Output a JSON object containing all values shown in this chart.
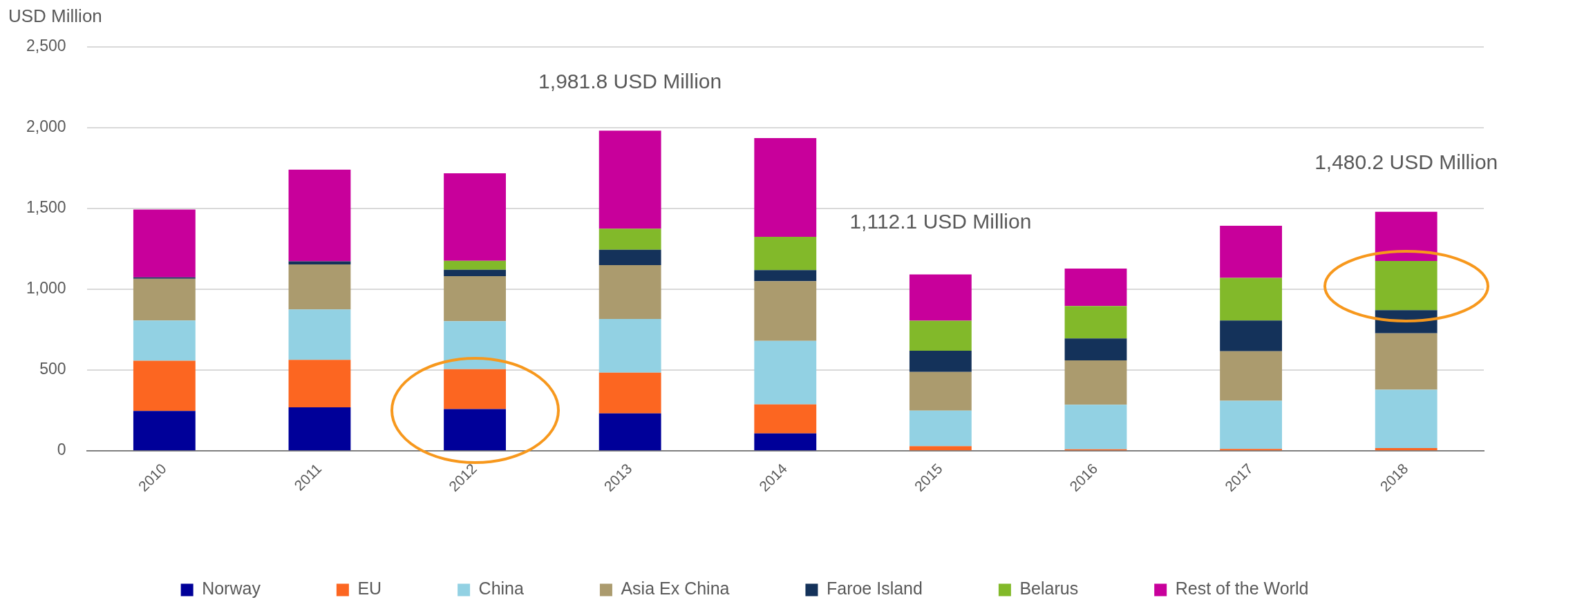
{
  "chart_data": {
    "type": "bar",
    "stacked": true,
    "ylabel": "USD Million",
    "categories": [
      "2010",
      "2011",
      "2012",
      "2013",
      "2014",
      "2015",
      "2016",
      "2017",
      "2018"
    ],
    "series": [
      {
        "name": "Norway",
        "color": "#000099",
        "values": [
          247,
          270,
          259,
          232,
          109,
          null,
          null,
          null,
          4
        ]
      },
      {
        "name": "EU",
        "color": "#fc6621",
        "values": [
          311,
          294,
          247,
          252,
          179,
          30,
          10,
          12,
          14
        ]
      },
      {
        "name": "China",
        "color": "#92d1e3",
        "values": [
          249,
          311,
          297,
          333,
          393,
          220,
          276,
          298,
          361
        ]
      },
      {
        "name": "Asia Ex China",
        "color": "#ab9b6e",
        "values": [
          259,
          279,
          279,
          333,
          370,
          239,
          274,
          307,
          349
        ]
      },
      {
        "name": "Faroe Island",
        "color": "#14325a",
        "values": [
          8,
          19,
          39,
          95,
          68,
          131,
          136,
          190,
          143
        ]
      },
      {
        "name": "Belarus",
        "color": "#82b92a",
        "values": [
          0,
          0,
          56,
          130,
          206,
          186,
          201,
          264,
          305
        ]
      },
      {
        "name": "Rest of the World",
        "color": "#c8009b",
        "values": [
          420,
          568,
          541,
          607,
          611,
          286,
          232,
          322,
          304
        ]
      }
    ],
    "ylim": [
      0,
      2500
    ],
    "yticks": [
      {
        "value": 0,
        "label": "0"
      },
      {
        "value": 500,
        "label": "500"
      },
      {
        "value": 1000,
        "label": "1,000"
      },
      {
        "value": 1500,
        "label": "1,500"
      },
      {
        "value": 2000,
        "label": "2,000"
      },
      {
        "value": 2500,
        "label": "2,500"
      }
    ],
    "grid": "y",
    "legend": "bottom",
    "annotations": [
      {
        "text": "1,981.8 USD Million",
        "x": "2013",
        "y": 1981.8
      },
      {
        "text": "1,112.1 USD Million",
        "x": "2015",
        "y": 1112.1
      },
      {
        "text": "1,480.2 USD Million",
        "x": "2018",
        "y": 1480.2
      }
    ]
  }
}
